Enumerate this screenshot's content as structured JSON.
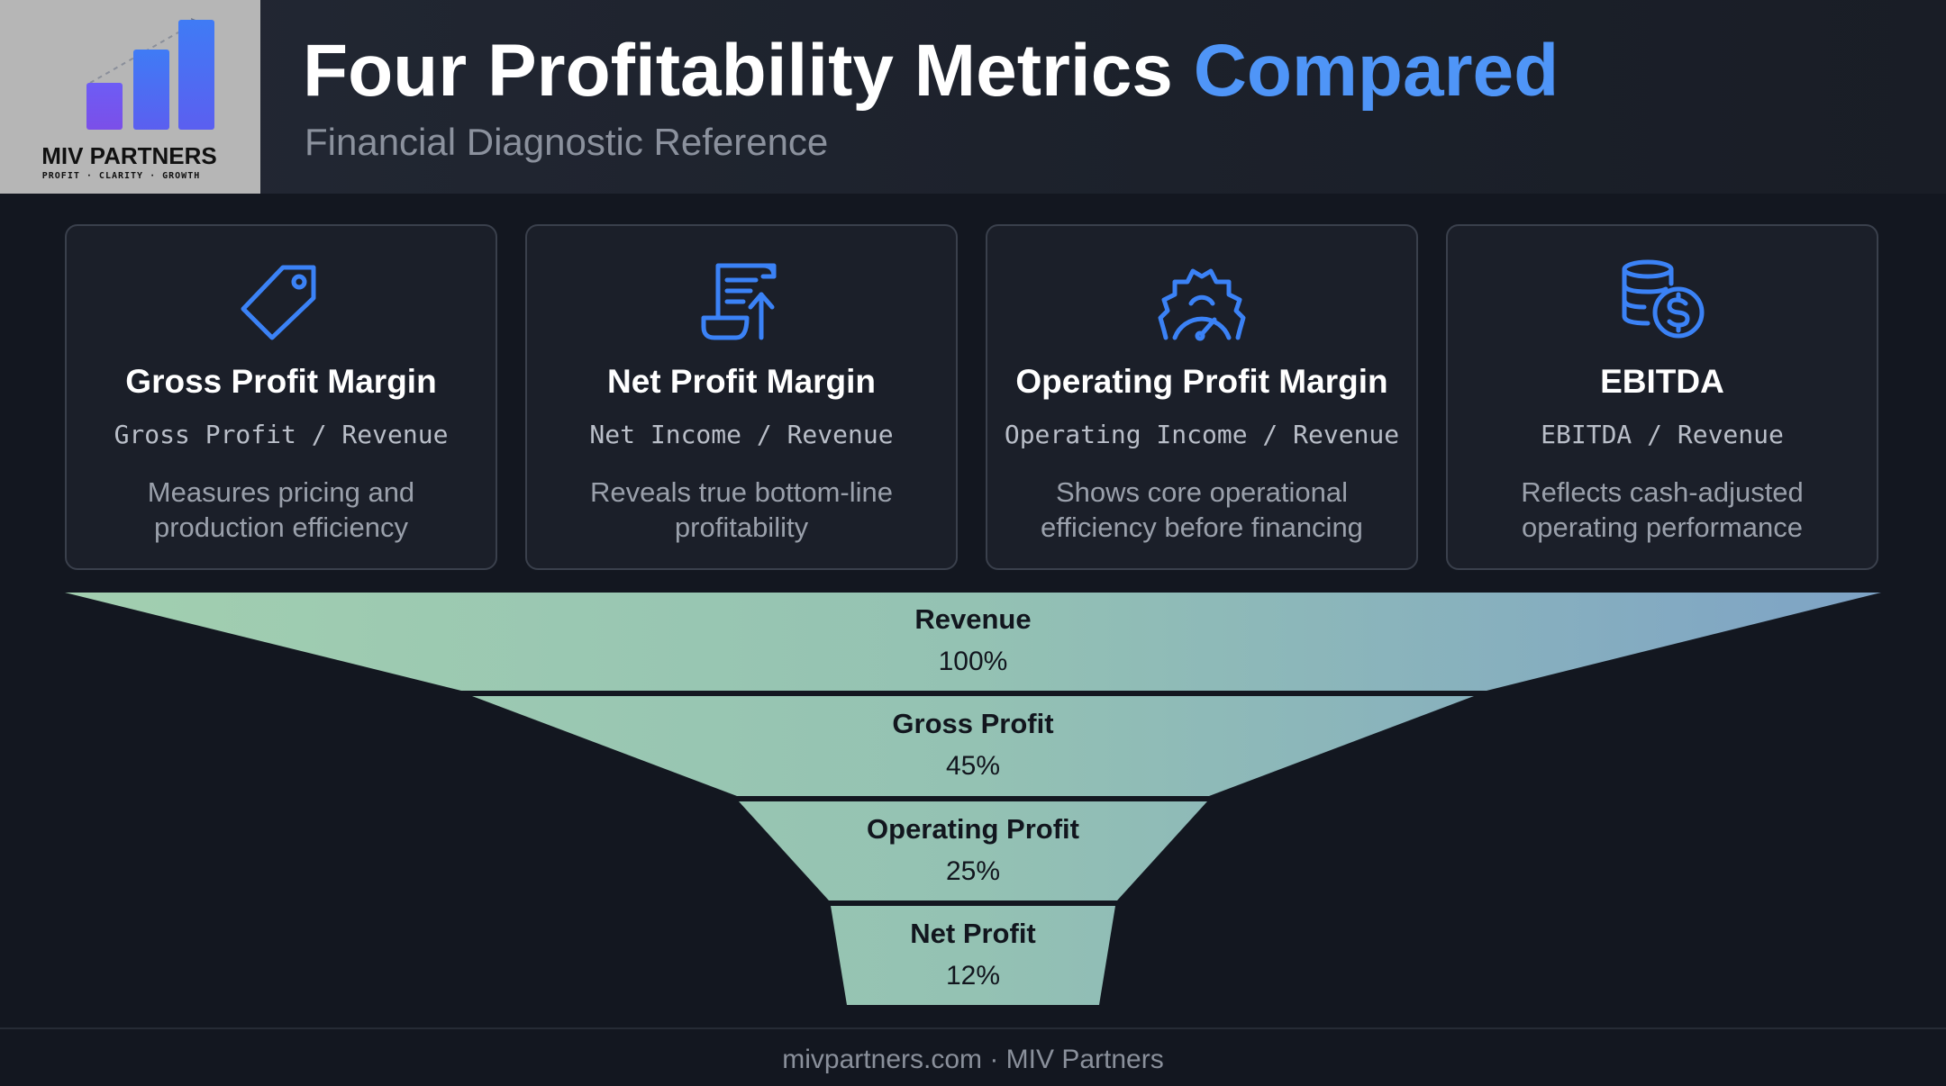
{
  "brand": {
    "name": "MIV PARTNERS",
    "tagline": "PROFIT · CLARITY · GROWTH"
  },
  "header": {
    "title_main": "Four Profitability Metrics",
    "title_accent": "Compared",
    "subtitle": "Financial Diagnostic Reference"
  },
  "cards": [
    {
      "icon": "price-tag-icon",
      "title": "Gross Profit Margin",
      "formula": "Gross Profit / Revenue",
      "description": "Measures pricing and production efficiency"
    },
    {
      "icon": "document-upload-icon",
      "title": "Net Profit Margin",
      "formula": "Net Income / Revenue",
      "description": "Reveals true bottom-line profitability"
    },
    {
      "icon": "gear-gauge-icon",
      "title": "Operating Profit Margin",
      "formula": "Operating Income / Revenue",
      "description": "Shows core operational efficiency before financing"
    },
    {
      "icon": "coins-dollar-icon",
      "title": "EBITDA",
      "formula": "EBITDA / Revenue",
      "description": "Reflects cash-adjusted operating performance"
    }
  ],
  "funnel": [
    {
      "label": "Revenue",
      "value": "100%"
    },
    {
      "label": "Gross Profit",
      "value": "45%"
    },
    {
      "label": "Operating Profit",
      "value": "25%"
    },
    {
      "label": "Net Profit",
      "value": "12%"
    }
  ],
  "colors": {
    "accent": "#4f95f7",
    "icon": "#3b82f6",
    "funnel_left": "#a2cfb0",
    "funnel_right": "#7ea3c6"
  },
  "footer": {
    "text": "mivpartners.com · MIV Partners"
  }
}
